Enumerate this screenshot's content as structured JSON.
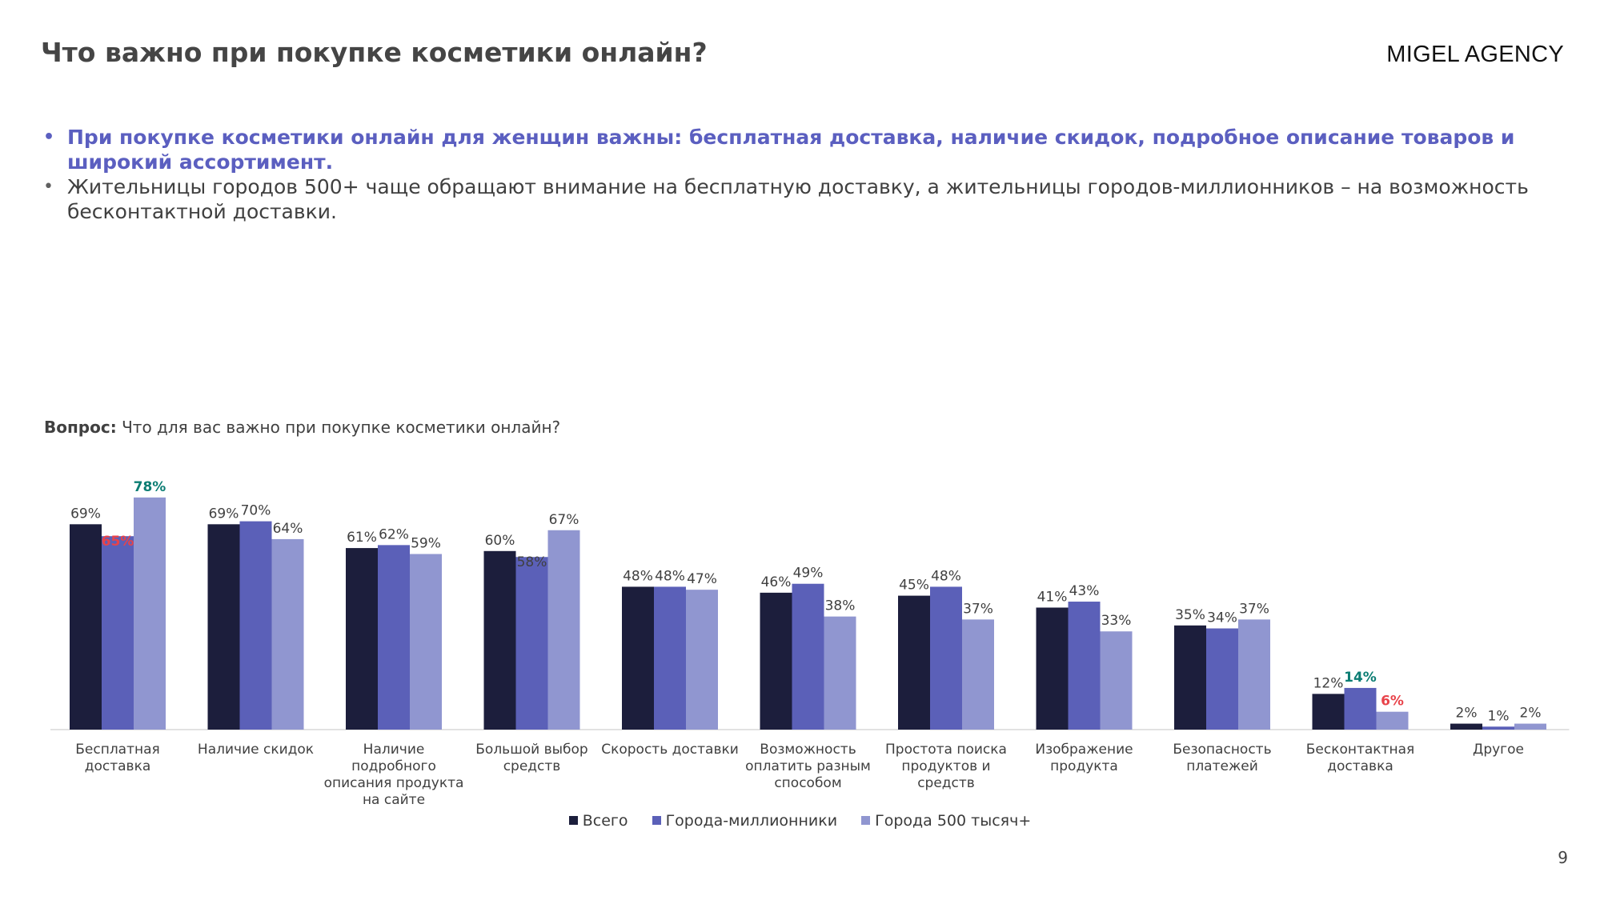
{
  "header": {
    "title": "Что важно при покупке косметики онлайн?",
    "brand": "MIGEL AGENCY"
  },
  "bullets": [
    "При покупке косметики онлайн для женщин важны: бесплатная доставка, наличие скидок, подробное описание товаров и широкий ассортимент.",
    "Жительницы городов 500+ чаще обращают внимание на бесплатную доставку, а жительницы городов-миллионников – на возможность бесконтактной доставки."
  ],
  "question": {
    "label": "Вопрос:",
    "text": "Что для вас важно при покупке косметики онлайн?"
  },
  "page_number": "9",
  "colors": {
    "series": [
      "#1c1e3c",
      "#5b60b8",
      "#9096d0"
    ],
    "highlight_high": "#0b7d73",
    "highlight_low": "#e8434a",
    "label_default": "#404040",
    "axis": "#d9d9d9"
  },
  "chart_data": {
    "type": "bar",
    "categories": [
      [
        "Бесплатная",
        "доставка"
      ],
      [
        "Наличие скидок"
      ],
      [
        "Наличие",
        "подробного",
        "описания продукта",
        "на сайте"
      ],
      [
        "Большой выбор",
        "средств"
      ],
      [
        "Скорость доставки"
      ],
      [
        "Возможность",
        "оплатить разным",
        "способом"
      ],
      [
        "Простота поиска",
        "продуктов и",
        "средств"
      ],
      [
        "Изображение",
        "продукта"
      ],
      [
        "Безопасность",
        "платежей"
      ],
      [
        "Бесконтактная",
        "доставка"
      ],
      [
        "Другое"
      ]
    ],
    "series": [
      {
        "name": "Всего",
        "values": [
          69,
          69,
          61,
          60,
          48,
          46,
          45,
          41,
          35,
          12,
          2
        ]
      },
      {
        "name": "Города-миллионники",
        "values": [
          65,
          70,
          62,
          58,
          48,
          49,
          48,
          43,
          34,
          14,
          1
        ]
      },
      {
        "name": "Города 500 тысяч+",
        "values": [
          78,
          64,
          59,
          67,
          47,
          38,
          37,
          33,
          37,
          6,
          2
        ]
      }
    ],
    "highlights": [
      {
        "category": 0,
        "series": 1,
        "style": "low"
      },
      {
        "category": 0,
        "series": 2,
        "style": "high"
      },
      {
        "category": 9,
        "series": 1,
        "style": "high"
      },
      {
        "category": 9,
        "series": 2,
        "style": "low"
      }
    ],
    "value_suffix": "%",
    "ylim": [
      0,
      80
    ],
    "legend_position": "bottom",
    "grid": false
  }
}
